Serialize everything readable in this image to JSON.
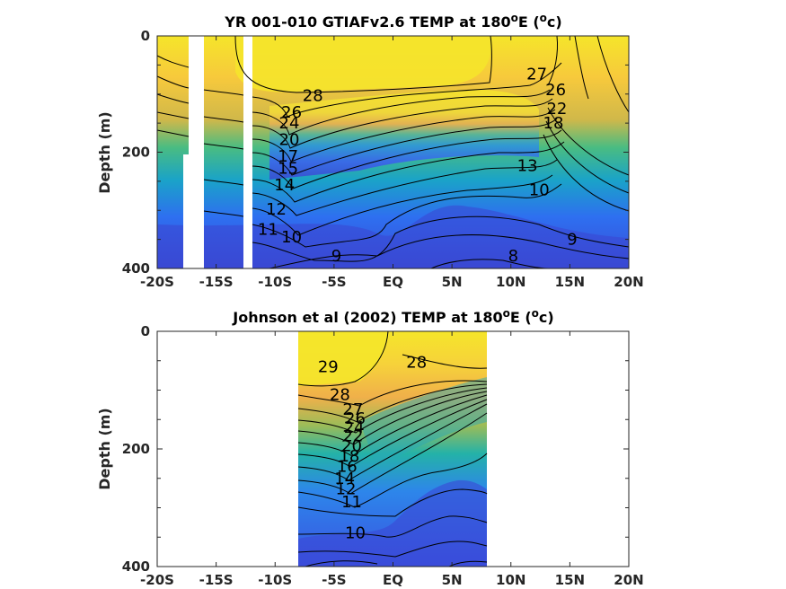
{
  "chart_data": [
    {
      "type": "contour",
      "title": "YR 001-010 GTIAFv2.6 TEMP at 180",
      "title_deg": "o",
      "title_tail": "E (",
      "title_unit_sup": "o",
      "title_unit": "c)",
      "ylabel": "Depth (m)",
      "xlim": [
        -20,
        20
      ],
      "ylim": [
        400,
        0
      ],
      "y_ticks": [
        "0",
        "200",
        "400"
      ],
      "x_ticks": [
        "-20S",
        "-15S",
        "-10S",
        "-5S",
        "EQ",
        "5N",
        "10N",
        "15N",
        "20N"
      ],
      "data_extent_lat": [
        -20,
        20
      ],
      "missing_bands_lat": [
        [
          -17.6,
          -16.2
        ],
        [
          -12.5,
          -11.8
        ]
      ],
      "contour_labels": [
        {
          "text": "28",
          "lat": -6.8,
          "depth": 103
        },
        {
          "text": "27",
          "lat": 12.2,
          "depth": 66
        },
        {
          "text": "26",
          "lat": -8.6,
          "depth": 131
        },
        {
          "text": "26",
          "lat": 13.8,
          "depth": 93
        },
        {
          "text": "24",
          "lat": -8.8,
          "depth": 150
        },
        {
          "text": "22",
          "lat": 13.9,
          "depth": 125
        },
        {
          "text": "20",
          "lat": -8.8,
          "depth": 178
        },
        {
          "text": "18",
          "lat": 13.6,
          "depth": 150
        },
        {
          "text": "17",
          "lat": -8.9,
          "depth": 207
        },
        {
          "text": "15",
          "lat": -8.9,
          "depth": 228
        },
        {
          "text": "13",
          "lat": 11.4,
          "depth": 223
        },
        {
          "text": "14",
          "lat": -9.2,
          "depth": 256
        },
        {
          "text": "12",
          "lat": -9.9,
          "depth": 298
        },
        {
          "text": "11",
          "lat": -10.6,
          "depth": 333
        },
        {
          "text": "10",
          "lat": -8.6,
          "depth": 346
        },
        {
          "text": "10",
          "lat": 12.4,
          "depth": 265
        },
        {
          "text": "9",
          "lat": -4.8,
          "depth": 378
        },
        {
          "text": "9",
          "lat": 15.2,
          "depth": 350
        },
        {
          "text": "8",
          "lat": 10.2,
          "depth": 378
        }
      ]
    },
    {
      "type": "contour",
      "title": "Johnson et al (2002) TEMP at 180",
      "title_deg": "o",
      "title_tail": "E (",
      "title_unit_sup": "o",
      "title_unit": "c)",
      "ylabel": "Depth (m)",
      "xlim": [
        -20,
        20
      ],
      "ylim": [
        400,
        0
      ],
      "y_ticks": [
        "0",
        "200",
        "400"
      ],
      "x_ticks": [
        "-20S",
        "-15S",
        "-10S",
        "-5S",
        "EQ",
        "5N",
        "10N",
        "15N",
        "20N"
      ],
      "data_extent_lat": [
        -8,
        8
      ],
      "contour_labels": [
        {
          "text": "29",
          "lat": -5.5,
          "depth": 60
        },
        {
          "text": "28",
          "lat": 2.0,
          "depth": 53
        },
        {
          "text": "28",
          "lat": -4.5,
          "depth": 108
        },
        {
          "text": "27",
          "lat": -3.4,
          "depth": 133
        },
        {
          "text": "26",
          "lat": -3.2,
          "depth": 148
        },
        {
          "text": "24",
          "lat": -3.3,
          "depth": 163
        },
        {
          "text": "22",
          "lat": -3.4,
          "depth": 178
        },
        {
          "text": "20",
          "lat": -3.5,
          "depth": 195
        },
        {
          "text": "18",
          "lat": -3.7,
          "depth": 212
        },
        {
          "text": "16",
          "lat": -3.9,
          "depth": 230
        },
        {
          "text": "14",
          "lat": -4.1,
          "depth": 250
        },
        {
          "text": "12",
          "lat": -4.0,
          "depth": 268
        },
        {
          "text": "11",
          "lat": -3.5,
          "depth": 290
        },
        {
          "text": "10",
          "lat": -3.2,
          "depth": 343
        }
      ]
    }
  ]
}
